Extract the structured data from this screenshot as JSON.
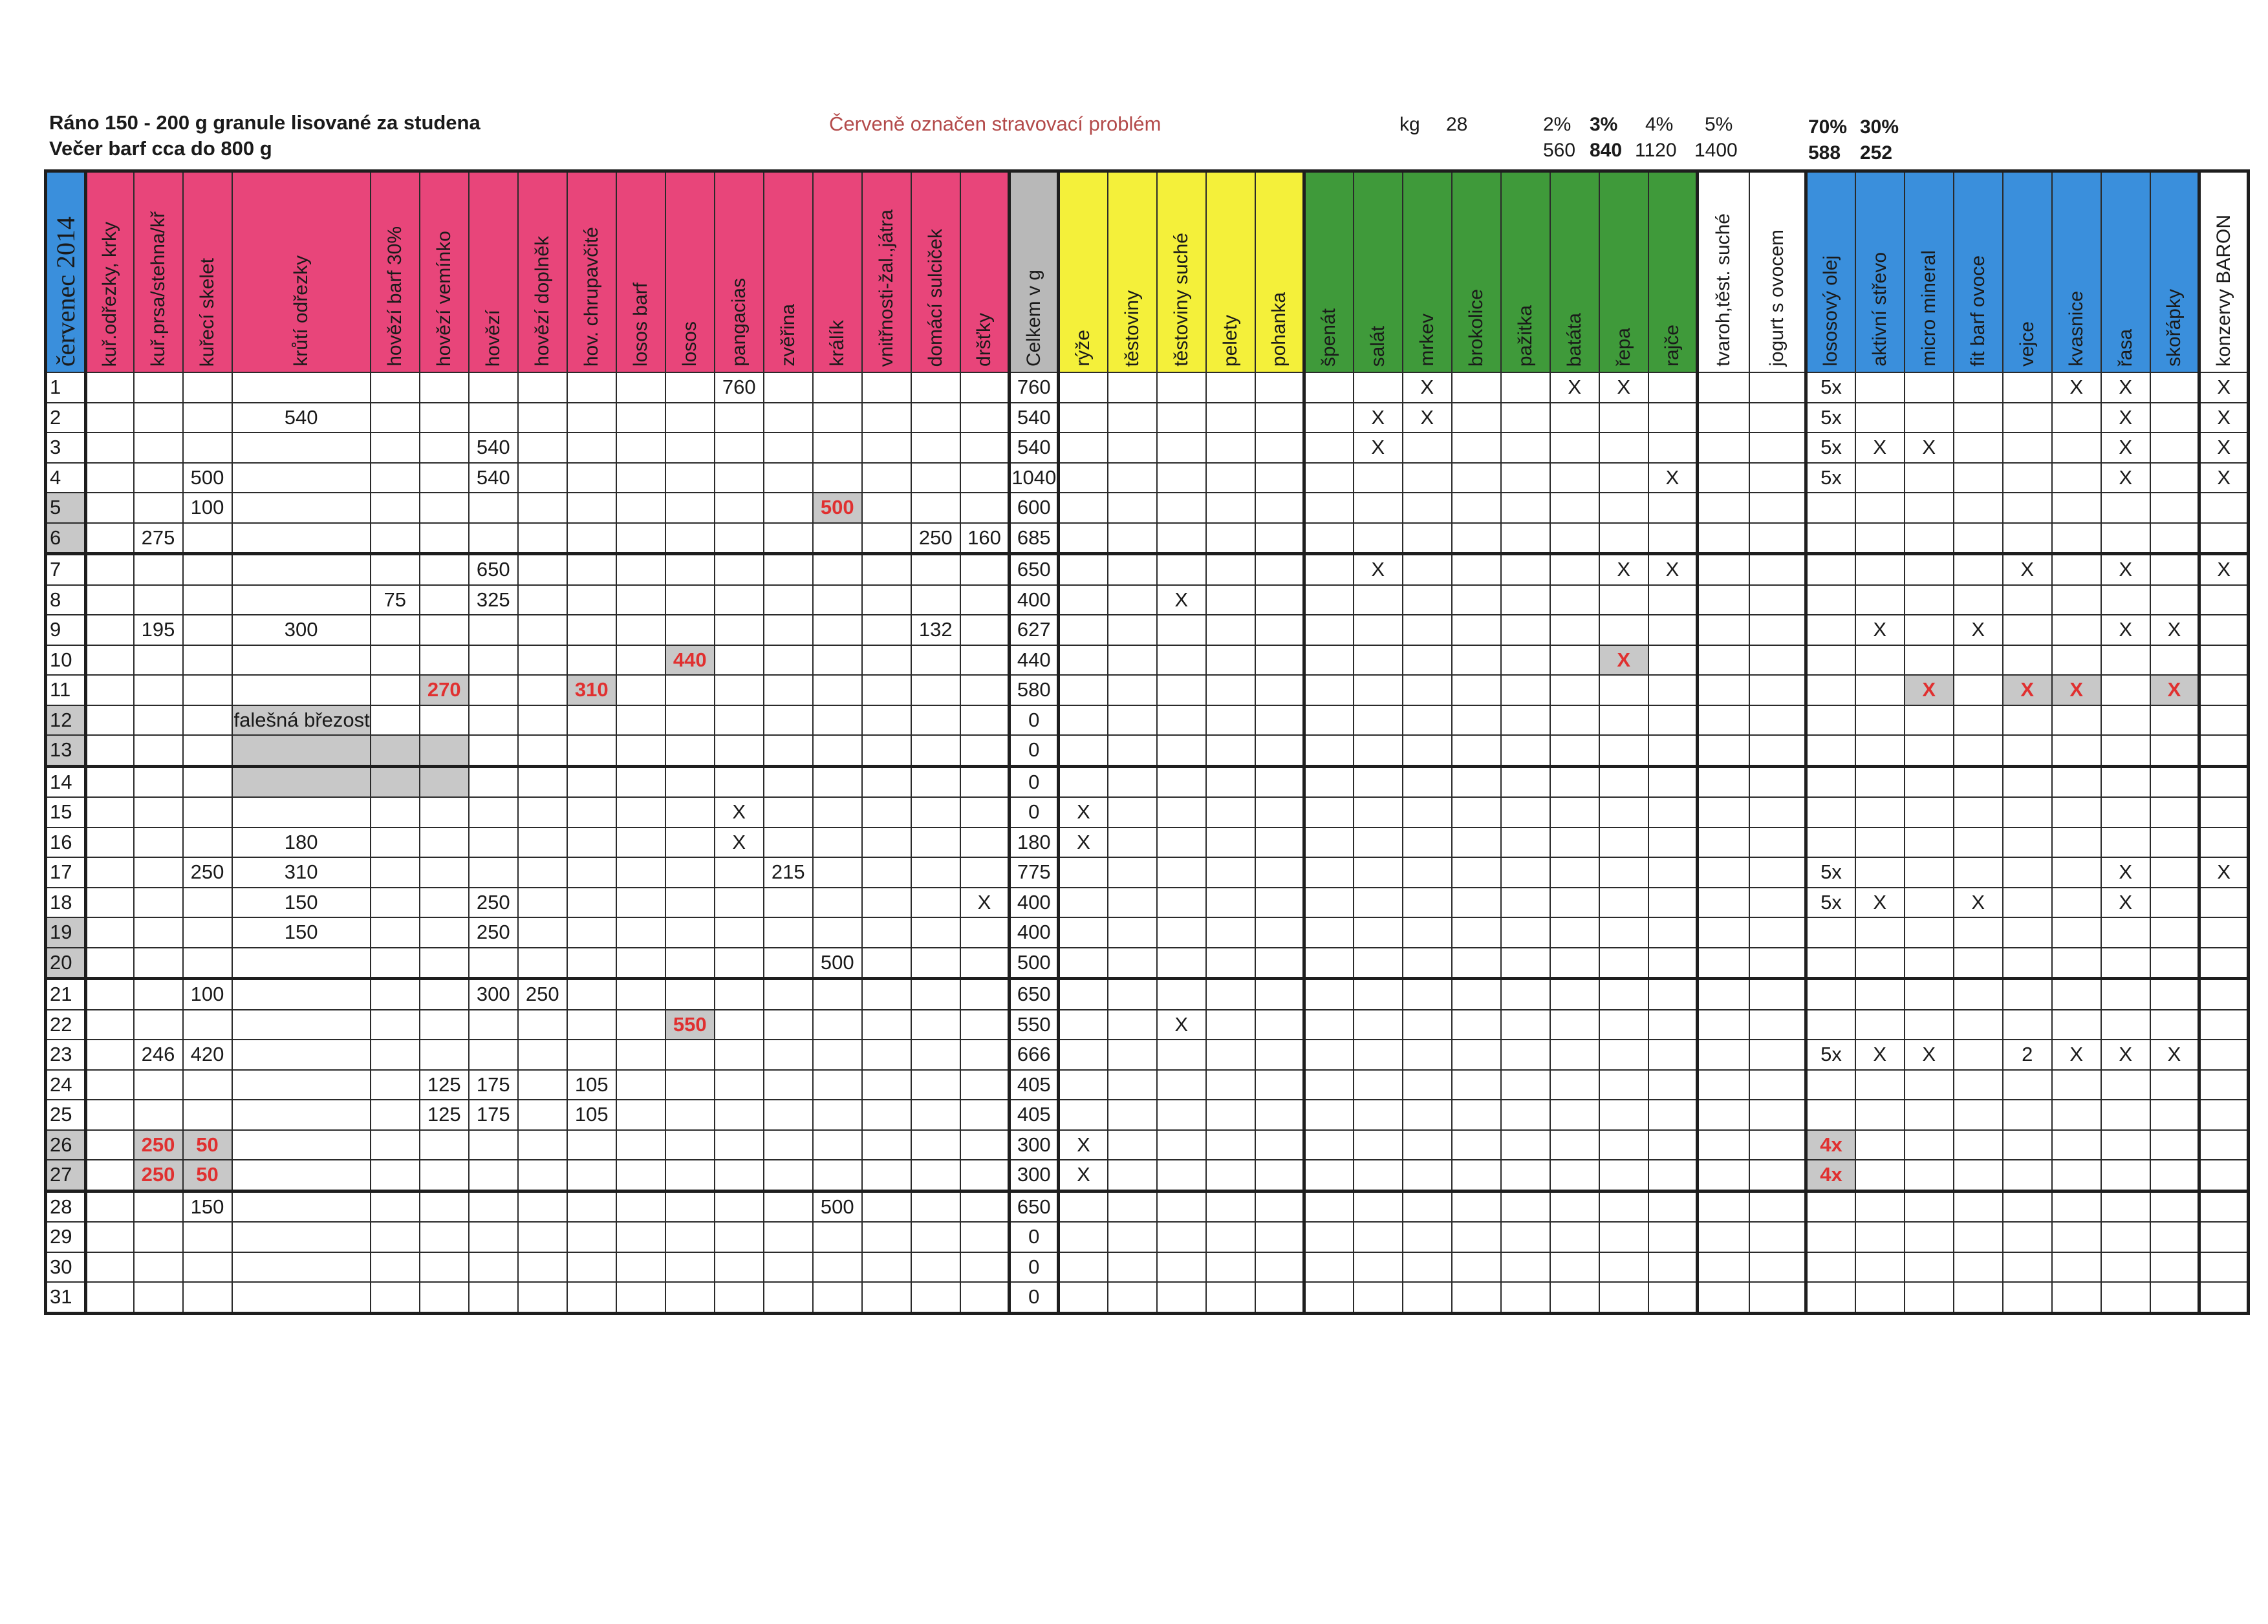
{
  "header": {
    "line1": "Ráno 150 - 200 g granule lisované za studena",
    "line2": "Večer barf cca do 800 g",
    "note": "Červeně označen stravovací problém",
    "kg_label": "kg",
    "kg_value": "28",
    "pct_labels": [
      "2%",
      "3%",
      "4%",
      "5%"
    ],
    "pct_values": [
      "560",
      "840",
      "1120",
      "1400"
    ],
    "ratio_labels": [
      "70%",
      "30%"
    ],
    "ratio_values": [
      "588",
      "252"
    ]
  },
  "month_label": "červenec 2014",
  "groups": {
    "meat": "#e8457a",
    "total": "#b8b8b8",
    "carbs": "#f4f03a",
    "vegetables": "#3f9a3a",
    "dairy": "#ffffff",
    "supplements": "#3a8fdc",
    "problem_text": "#e03030",
    "problem_fill": "#c8c8c8"
  },
  "columns": [
    "kuř.odřezky, krky",
    "kuř.prsa/stehna/kř",
    "kuřecí skelet",
    "krůtí odřezky",
    "hovězí barf 30%",
    "hovězí vemínko",
    "hovězí",
    "hovězí doplněk",
    "hov. chrupavčité",
    "losos barf",
    "losos",
    "pangacias",
    "zvěřina",
    "králík",
    "vnitřnosti-žal.,játra",
    "domácí sulciček",
    "dršťky",
    "Celkem v g",
    "rýže",
    "těstoviny",
    "těstoviny suché",
    "pelety",
    "pohanka",
    "špenát",
    "salát",
    "mrkev",
    "brokolice",
    "pažitka",
    "batáta",
    "řepa",
    "rajče",
    "tvaroh,těst. suché",
    "jogurt s ovocem",
    "lososový olej",
    "aktivní střevo",
    "micro mineral",
    "fit barf ovoce",
    "vejce",
    "kvasnice",
    "řasa",
    "skořápky",
    "konzervy BARON"
  ],
  "rows": [
    {
      "day": "1",
      "cells": {
        "11": "760",
        "17": "760",
        "25": "X",
        "28": "X",
        "29": "X",
        "33": "5x",
        "38": "X",
        "39": "X",
        "41": "X"
      }
    },
    {
      "day": "2",
      "cells": {
        "3": "540",
        "17": "540",
        "24": "X",
        "25": "X",
        "33": "5x",
        "39": "X",
        "41": "X"
      }
    },
    {
      "day": "3",
      "cells": {
        "6": "540",
        "17": "540",
        "24": "X",
        "33": "5x",
        "34": "X",
        "35": "X",
        "39": "X",
        "41": "X"
      }
    },
    {
      "day": "4",
      "cells": {
        "2": "500",
        "6": "540",
        "17": "1040",
        "30": "X",
        "33": "5x",
        "39": "X",
        "41": "X"
      }
    },
    {
      "day": "5",
      "cells": {
        "2": "100",
        "13": "500",
        "17": "600"
      }
    },
    {
      "day": "6",
      "cells": {
        "1": "275",
        "15": "250",
        "16": "160",
        "17": "685"
      }
    },
    {
      "day": "7",
      "cells": {
        "6": "650",
        "17": "650",
        "24": "X",
        "29": "X",
        "30": "X",
        "37": "X",
        "39": "X",
        "41": "X"
      }
    },
    {
      "day": "8",
      "cells": {
        "4": "75",
        "6": "325",
        "17": "400",
        "20": "X"
      }
    },
    {
      "day": "9",
      "cells": {
        "1": "195",
        "3": "300",
        "15": "132",
        "17": "627",
        "34": "X",
        "36": "X",
        "39": "X",
        "40": "X"
      }
    },
    {
      "day": "10",
      "cells": {
        "10": "440",
        "17": "440",
        "29": "X"
      }
    },
    {
      "day": "11",
      "cells": {
        "5": "270",
        "8": "310",
        "17": "580",
        "35": "X",
        "37": "X",
        "38": "X",
        "40": "X"
      }
    },
    {
      "day": "12",
      "cells": {
        "3": "falešná březost",
        "17": "0"
      }
    },
    {
      "day": "13",
      "cells": {
        "17": "0"
      }
    },
    {
      "day": "14",
      "cells": {
        "17": "0"
      }
    },
    {
      "day": "15",
      "cells": {
        "11": "X",
        "17": "0",
        "18": "X"
      }
    },
    {
      "day": "16",
      "cells": {
        "3": "180",
        "11": "X",
        "17": "180",
        "18": "X"
      }
    },
    {
      "day": "17",
      "cells": {
        "2": "250",
        "3": "310",
        "12": "215",
        "17": "775",
        "33": "5x",
        "39": "X",
        "41": "X"
      }
    },
    {
      "day": "18",
      "cells": {
        "3": "150",
        "6": "250",
        "16": "X",
        "17": "400",
        "33": "5x",
        "34": "X",
        "36": "X",
        "39": "X"
      }
    },
    {
      "day": "19",
      "cells": {
        "3": "150",
        "6": "250",
        "17": "400"
      }
    },
    {
      "day": "20",
      "cells": {
        "13": "500",
        "17": "500"
      }
    },
    {
      "day": "21",
      "cells": {
        "2": "100",
        "6": "300",
        "7": "250",
        "17": "650"
      }
    },
    {
      "day": "22",
      "cells": {
        "10": "550",
        "17": "550",
        "20": "X"
      }
    },
    {
      "day": "23",
      "cells": {
        "1": "246",
        "2": "420",
        "17": "666",
        "33": "5x",
        "34": "X",
        "35": "X",
        "37": "2",
        "38": "X",
        "39": "X",
        "40": "X"
      }
    },
    {
      "day": "24",
      "cells": {
        "5": "125",
        "6": "175",
        "8": "105",
        "17": "405"
      }
    },
    {
      "day": "25",
      "cells": {
        "5": "125",
        "6": "175",
        "8": "105",
        "17": "405"
      }
    },
    {
      "day": "26",
      "cells": {
        "1": "250",
        "2": "50",
        "17": "300",
        "18": "X",
        "33": "4x"
      }
    },
    {
      "day": "27",
      "cells": {
        "1": "250",
        "2": "50",
        "17": "300",
        "18": "X",
        "33": "4x"
      }
    },
    {
      "day": "28",
      "cells": {
        "2": "150",
        "13": "500",
        "17": "650"
      }
    },
    {
      "day": "29",
      "cells": {
        "17": "0"
      }
    },
    {
      "day": "30",
      "cells": {
        "17": "0"
      }
    },
    {
      "day": "31",
      "cells": {
        "17": "0"
      }
    }
  ],
  "problems": [
    {
      "day": "5",
      "col": "13"
    },
    {
      "day": "10",
      "col": "10"
    },
    {
      "day": "10",
      "col": "29"
    },
    {
      "day": "11",
      "col": "5"
    },
    {
      "day": "11",
      "col": "8"
    },
    {
      "day": "11",
      "col": "35"
    },
    {
      "day": "11",
      "col": "37"
    },
    {
      "day": "11",
      "col": "38"
    },
    {
      "day": "11",
      "col": "40"
    },
    {
      "day": "22",
      "col": "10"
    },
    {
      "day": "26",
      "col": "1"
    },
    {
      "day": "26",
      "col": "2"
    },
    {
      "day": "26",
      "col": "33"
    },
    {
      "day": "27",
      "col": "1"
    },
    {
      "day": "27",
      "col": "2"
    },
    {
      "day": "27",
      "col": "33"
    }
  ],
  "grey_days": [
    "5",
    "6",
    "12",
    "13",
    "19",
    "20",
    "26",
    "27"
  ],
  "grey_cells": [
    {
      "day": "13",
      "col": "3"
    },
    {
      "day": "13",
      "col": "4"
    },
    {
      "day": "13",
      "col": "5"
    },
    {
      "day": "14",
      "col": "3"
    },
    {
      "day": "14",
      "col": "4"
    },
    {
      "day": "14",
      "col": "5"
    }
  ],
  "week_end_days": [
    "6",
    "13",
    "20",
    "27"
  ]
}
